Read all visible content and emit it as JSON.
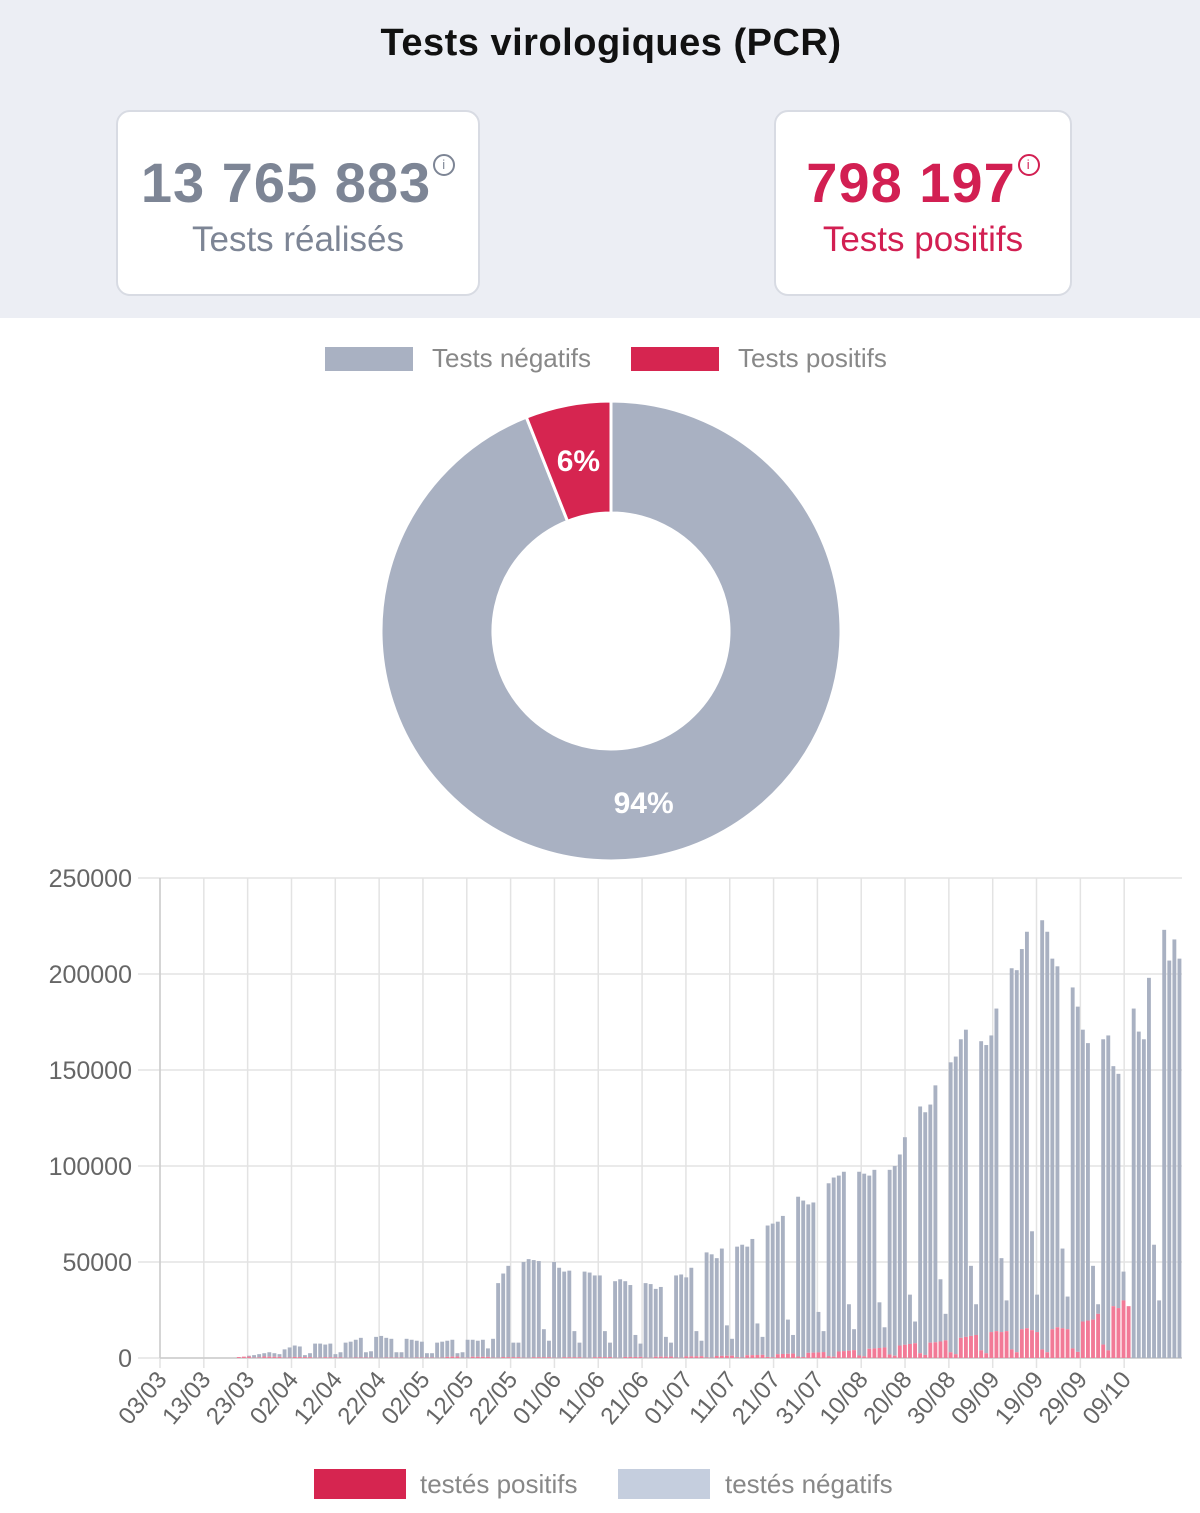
{
  "header": {
    "title": "Tests virologiques (PCR)",
    "info_glyph": "i"
  },
  "kpis": {
    "total": {
      "value": "13 765 883",
      "label": "Tests réalisés",
      "icon": "info-icon"
    },
    "positive": {
      "value": "798 197",
      "label": "Tests positifs",
      "icon": "info-icon"
    }
  },
  "colors": {
    "negative": "#a9b1c2",
    "positive": "#d62550",
    "bar_positive": "#f27a97",
    "legend_negative_bar": "#c5cede"
  },
  "chart_data": [
    {
      "type": "pie",
      "variant": "doughnut",
      "legend": [
        "Tests négatifs",
        "Tests positifs"
      ],
      "legend_position": "top",
      "slices": [
        {
          "name": "Tests négatifs",
          "value": 94,
          "label": "94%",
          "color": "#a9b1c2"
        },
        {
          "name": "Tests positifs",
          "value": 6,
          "label": "6%",
          "color": "#d62550"
        }
      ]
    },
    {
      "type": "bar",
      "stacked": true,
      "legend": [
        "testés positifs",
        "testés négatifs"
      ],
      "legend_position": "bottom",
      "ylim": [
        0,
        250000
      ],
      "y_ticks": [
        "250000",
        "200000",
        "150000",
        "100000",
        "50000",
        "0"
      ],
      "y_tick_values": [
        250000,
        200000,
        150000,
        100000,
        50000,
        0
      ],
      "x_tick_labels": [
        "03/03",
        "13/03",
        "23/03",
        "02/04",
        "12/04",
        "22/04",
        "02/05",
        "12/05",
        "22/05",
        "01/06",
        "11/06",
        "21/06",
        "01/07",
        "11/07",
        "21/07",
        "31/07",
        "10/08",
        "20/08",
        "30/08",
        "09/09",
        "19/09",
        "29/09",
        "09/10"
      ],
      "grid": true,
      "series": [
        {
          "name": "testés positifs"
        },
        {
          "name": "testés négatifs"
        }
      ],
      "totals": [
        0,
        0,
        0,
        0,
        0,
        0,
        0,
        0,
        0,
        0,
        0,
        0,
        0,
        0,
        0,
        500,
        700,
        1200,
        1500,
        2000,
        2500,
        3000,
        2500,
        2000,
        4500,
        5500,
        6500,
        6000,
        1500,
        2500,
        7500,
        7500,
        7000,
        7500,
        2000,
        3000,
        8000,
        8500,
        9500,
        10500,
        3000,
        3500,
        11000,
        11500,
        10500,
        10000,
        3000,
        3000,
        10000,
        9500,
        9000,
        8500,
        2500,
        2500,
        8000,
        8500,
        9000,
        9500,
        2500,
        3000,
        9500,
        9500,
        9000,
        9500,
        5000,
        10000,
        39000,
        44000,
        48000,
        8000,
        8000,
        50000,
        51500,
        51000,
        50500,
        15000,
        9000,
        50000,
        47000,
        45000,
        45500,
        14000,
        8000,
        45000,
        44500,
        43000,
        43000,
        14000,
        8000,
        40000,
        41000,
        40000,
        38000,
        12000,
        7500,
        39000,
        38500,
        36000,
        37000,
        11000,
        8000,
        43000,
        43500,
        42000,
        47000,
        14000,
        9000,
        55000,
        54000,
        52000,
        57000,
        17000,
        10000,
        58000,
        59000,
        58000,
        62000,
        18000,
        11000,
        69000,
        70000,
        71000,
        74000,
        20000,
        12000,
        84000,
        82000,
        80000,
        81000,
        24000,
        14000,
        91000,
        94000,
        95000,
        97000,
        28000,
        15000,
        97000,
        96000,
        95000,
        98000,
        29000,
        16000,
        98000,
        100000,
        106000,
        115000,
        33000,
        19000,
        131000,
        128000,
        132000,
        142000,
        41000,
        23000,
        154000,
        157000,
        166000,
        171000,
        48000,
        28000,
        165000,
        163000,
        168000,
        182000,
        52000,
        30000,
        203000,
        202000,
        213000,
        222000,
        66000,
        33000,
        228000,
        222000,
        208000,
        204000,
        57000,
        32000,
        193000,
        183000,
        171000,
        164000,
        48000,
        28000,
        166000,
        168000,
        152000,
        148000,
        45000,
        27000,
        182000,
        170000,
        166000,
        198000,
        59000,
        30000,
        223000,
        207000,
        218000,
        208000
      ],
      "positives": [
        0,
        0,
        0,
        0,
        0,
        50,
        80,
        150,
        200,
        300,
        400,
        500,
        400,
        300,
        600,
        700,
        800,
        750,
        200,
        300,
        800,
        700,
        650,
        600,
        200,
        250,
        550,
        500,
        500,
        450,
        150,
        200,
        400,
        350,
        300,
        300,
        100,
        100,
        250,
        250,
        250,
        200,
        80,
        80,
        200,
        200,
        200,
        200,
        60,
        60,
        200,
        200,
        200,
        200,
        100,
        200,
        600,
        700,
        750,
        150,
        150,
        650,
        650,
        600,
        600,
        200,
        150,
        500,
        450,
        450,
        450,
        150,
        100,
        400,
        400,
        400,
        400,
        150,
        100,
        400,
        400,
        400,
        400,
        150,
        100,
        400,
        450,
        450,
        500,
        150,
        100,
        550,
        550,
        550,
        600,
        200,
        150,
        650,
        700,
        700,
        750,
        250,
        150,
        850,
        850,
        900,
        950,
        300,
        200,
        1050,
        1100,
        1150,
        1200,
        400,
        250,
        1450,
        1500,
        1550,
        1650,
        550,
        350,
        2000,
        2100,
        2200,
        2300,
        800,
        500,
        2700,
        2800,
        2900,
        3100,
        1000,
        700,
        3400,
        3600,
        3800,
        4100,
        1300,
        900,
        4800,
        5000,
        5200,
        5500,
        1800,
        1200,
        6500,
        6900,
        7300,
        7700,
        2500,
        1600,
        8000,
        8200,
        8600,
        9200,
        3000,
        2000,
        10500,
        11000,
        11500,
        12000,
        4000,
        2500,
        13500,
        14000,
        13500,
        14000,
        4500,
        3000,
        15000,
        15500,
        14500,
        13500,
        4500,
        3000,
        15000,
        16000,
        15500,
        15000,
        5000,
        3200,
        19000,
        19500,
        20000,
        23000,
        7000,
        4000,
        27000,
        26000,
        30000,
        28000
      ]
    }
  ]
}
